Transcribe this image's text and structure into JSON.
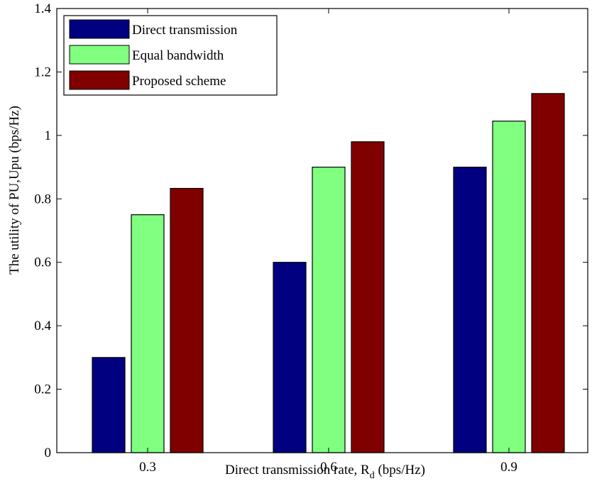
{
  "chart_data": {
    "type": "bar",
    "categories": [
      "0.3",
      "0.6",
      "0.9"
    ],
    "series": [
      {
        "name": "Direct transmission",
        "color": "#000080",
        "values": [
          0.3,
          0.6,
          0.9
        ]
      },
      {
        "name": "Equal bandwidth",
        "color": "#80ff80",
        "values": [
          0.75,
          0.9,
          1.045
        ]
      },
      {
        "name": "Proposed scheme",
        "color": "#800000",
        "values": [
          0.833,
          0.98,
          1.132
        ]
      }
    ],
    "xlabel": "Direct transmission rate, R",
    "xlabel_subscript": "d",
    "xlabel_suffix": " (bps/Hz)",
    "ylabel": "The utility of PU,Upu (bps/Hz)",
    "ylim": [
      0,
      1.4
    ],
    "yticks": [
      "0",
      "0.2",
      "0.4",
      "0.6",
      "0.8",
      "1",
      "1.2",
      "1.4"
    ],
    "grid": false,
    "legend_position": "top-left"
  }
}
